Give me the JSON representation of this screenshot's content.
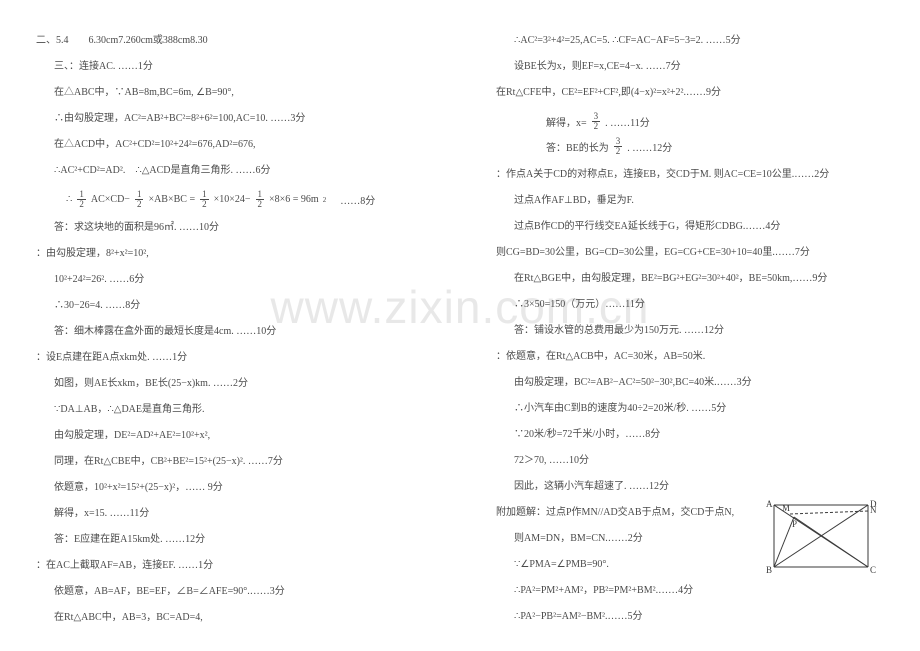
{
  "watermark": "www.zixin.com.cn",
  "left": [
    {
      "cls": "line",
      "t": "二、5.4　　6.30cm7.260cm或388cm8.30"
    },
    {
      "cls": "line indent1",
      "t": "三、：连接AC. ……1分"
    },
    {
      "cls": "line indent1",
      "t": "在△ABC中，∵AB=8m,BC=6m, ∠B=90°,"
    },
    {
      "cls": "line indent1",
      "t": "∴由勾股定理，AC²=AB²+BC²=8²+6²=100,AC=10. ……3分"
    },
    {
      "cls": "line indent1",
      "t": "在△ACD中，AC²+CD²=10²+24²=676,AD²=676,"
    },
    {
      "cls": "line indent1",
      "t": "∴AC²+CD²=AD².　∴△ACD是直角三角形. ……6分"
    },
    {
      "cls": "formula",
      "parts": [
        "∴",
        "frac:1:2",
        "AC×CD−",
        "frac:1:2",
        "×AB×BC =",
        "frac:1:2",
        "×10×24−",
        "frac:1:2",
        "×8×6 = 96m",
        "sup:2",
        "　……8分"
      ]
    },
    {
      "cls": "line indent1",
      "t": "答：求这块地的面积是96㎡. ……10分"
    },
    {
      "cls": "line",
      "t": "：由勾股定理，8²+x²=10²,"
    },
    {
      "cls": "line indent1",
      "t": "10²+24²=26². ……6分"
    },
    {
      "cls": "line indent1",
      "t": "∴30−26=4. ……8分"
    },
    {
      "cls": "line indent1",
      "t": "答：细木棒露在盒外面的最短长度是4cm. ……10分"
    },
    {
      "cls": "line",
      "t": "：设E点建在距A点xkm处. ……1分"
    },
    {
      "cls": "line indent1",
      "t": "如图，则AE长xkm，BE长(25−x)km. ……2分"
    },
    {
      "cls": "line indent1",
      "t": "∵DA⊥AB，∴△DAE是直角三角形."
    },
    {
      "cls": "line indent1",
      "t": "由勾股定理，DE²=AD²+AE²=10²+x²,"
    },
    {
      "cls": "line indent1",
      "t": "同理，在Rt△CBE中，CB²+BE²=15²+(25−x)². ……7分"
    },
    {
      "cls": "line indent1",
      "t": "依题意，10²+x²=15²+(25−x)²，…… 9分"
    },
    {
      "cls": "line indent1",
      "t": "解得，x=15. ……11分"
    },
    {
      "cls": "line indent1",
      "t": "答：E应建在距A15km处. ……12分"
    },
    {
      "cls": "line",
      "t": "：在AC上截取AF=AB，连接EF. ……1分"
    },
    {
      "cls": "line indent1",
      "t": "依题意，AB=AF，BE=EF，∠B=∠AFE=90°.……3分"
    },
    {
      "cls": "line indent1",
      "t": "在Rt△ABC中，AB=3，BC=AD=4,"
    }
  ],
  "right": [
    {
      "cls": "line indent1",
      "t": "∴AC²=3²+4²=25,AC=5. ∴CF=AC−AF=5−3=2. ……5分"
    },
    {
      "cls": "line indent1",
      "t": "设BE长为x，则EF=x,CE=4−x. ……7分"
    },
    {
      "cls": "line",
      "t": "在Rt△CFE中，CE²=EF²+CF²,即(4−x)²=x²+2².……9分"
    },
    {
      "cls": "formula",
      "parts": [
        "　　解得，x=",
        "frac:3:2",
        ". ……11分"
      ]
    },
    {
      "cls": "formula",
      "parts": [
        "　　答：BE的长为",
        "frac:3:2",
        ". ……12分"
      ]
    },
    {
      "cls": "line",
      "t": "：作点A关于CD的对称点E，连接EB，交CD于M. 则AC=CE=10公里.……2分"
    },
    {
      "cls": "line indent1",
      "t": "过点A作AF⊥BD，垂足为F."
    },
    {
      "cls": "line indent1",
      "t": "过点B作CD的平行线交EA延长线于G，得矩形CDBG.……4分"
    },
    {
      "cls": "line",
      "t": "则CG=BD=30公里，BG=CD=30公里，EG=CG+CE=30+10=40里.……7分"
    },
    {
      "cls": "line indent1",
      "t": "在Rt△BGE中，由勾股定理，BE²=BG²+EG²=30²+40²，BE=50km,……9分"
    },
    {
      "cls": "line indent1",
      "t": "∴3×50=150（万元）……11分"
    },
    {
      "cls": "line indent1",
      "t": "答：铺设水管的总费用最少为150万元. ……12分"
    },
    {
      "cls": "line",
      "t": "：依题意，在Rt△ACB中，AC=30米，AB=50米."
    },
    {
      "cls": "line indent1",
      "t": "由勾股定理，BC²=AB²−AC²=50²−30²,BC=40米.……3分"
    },
    {
      "cls": "line indent1",
      "t": "∴小汽车由C到B的速度为40÷2=20米/秒. ……5分"
    },
    {
      "cls": "line indent1",
      "t": "∵20米/秒=72千米/小时，……8分"
    },
    {
      "cls": "line indent1",
      "t": "72＞70, ……10分"
    },
    {
      "cls": "line indent1",
      "t": "因此，这辆小汽车超速了. ……12分"
    },
    {
      "cls": "line",
      "t": "附加题解：过点P作MN//AD交AB于点M，交CD于点N,"
    },
    {
      "cls": "line indent1",
      "t": "则AM=DN，BM=CN.……2分"
    },
    {
      "cls": "line indent1",
      "t": "∵∠PMA=∠PMB=90°."
    },
    {
      "cls": "line indent1",
      "t": "∴PA²=PM²+AM²，PB²=PM²+BM².……4分"
    },
    {
      "cls": "line indent1",
      "t": "∴PA²−PB²=AM²−BM².……5分"
    }
  ],
  "diagram": {
    "w": 120,
    "h": 86,
    "stroke": "#3a3a3a",
    "labels": {
      "A": "A",
      "B": "B",
      "C": "C",
      "D": "D",
      "M": "M",
      "N": "N",
      "P": "P"
    },
    "label_font": 9
  }
}
